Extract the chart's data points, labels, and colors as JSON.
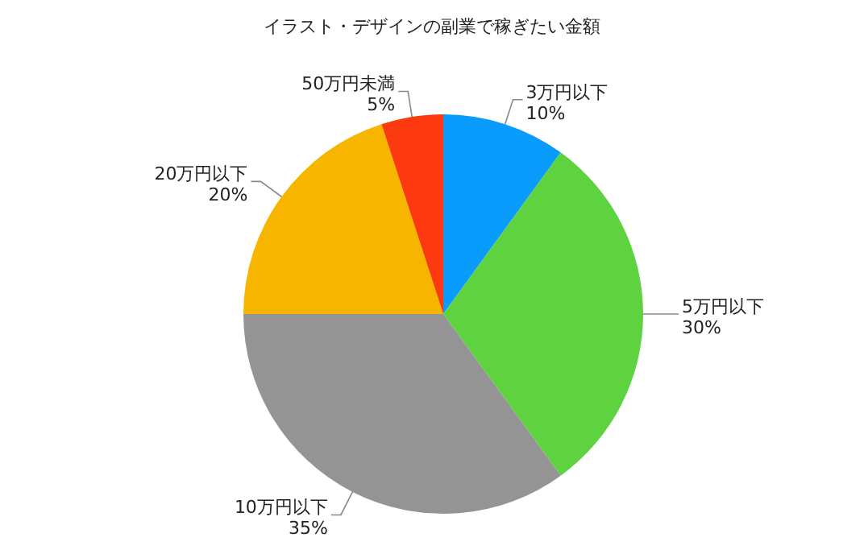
{
  "chart_data": {
    "type": "pie",
    "title": "イラスト・デザインの副業で稼ぎたい金額",
    "categories": [
      "3万円以下",
      "5万円以下",
      "10万円以下",
      "20万円以下",
      "50万円未満"
    ],
    "values": [
      10,
      30,
      35,
      20,
      5
    ],
    "value_labels": [
      "10%",
      "30%",
      "35%",
      "20%",
      "5%"
    ],
    "colors": [
      "#0a9cfc",
      "#5fd33f",
      "#949494",
      "#f7b500",
      "#fd3a0f"
    ],
    "legend": false
  }
}
